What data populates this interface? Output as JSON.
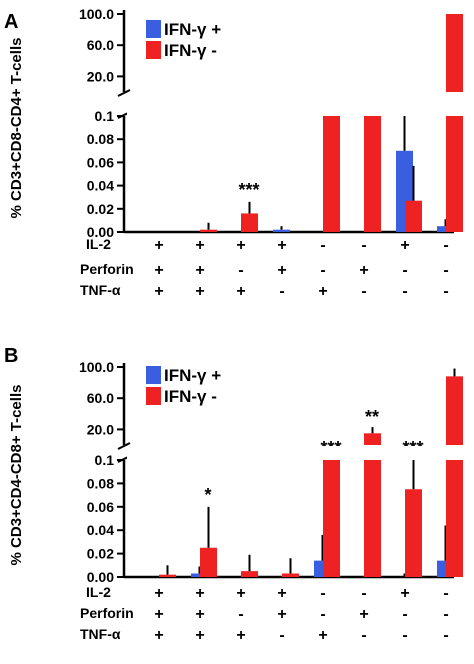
{
  "chart_data": [
    {
      "panel": "A",
      "type": "bar",
      "ylabel": "% CD3+CD8-CD4+ T-cells",
      "y_upper_ticks": [
        "20.0",
        "60.0",
        "100.0"
      ],
      "y_lower_ticks": [
        "0.00",
        "0.02",
        "0.04",
        "0.06",
        "0.08",
        "0.1"
      ],
      "ylim_upper": [
        0,
        100
      ],
      "ylim_lower": [
        0,
        0.1
      ],
      "axis_break": true,
      "series": [
        {
          "name": "IFN-γ +",
          "color": "#3a5ee0",
          "values": [
            0.0,
            0.0,
            0.0,
            0.002,
            0.0,
            0.0,
            0.07,
            0.005
          ],
          "errors": [
            0.0,
            0.0,
            0.0,
            0.003,
            0.0,
            0.0,
            0.03,
            0.006
          ]
        },
        {
          "name": "IFN-γ -",
          "color": "#ee2222",
          "values": [
            0.0,
            0.002,
            0.016,
            0.0,
            0.1,
            0.1,
            0.027,
            100.0
          ],
          "errors": [
            0.0,
            0.006,
            0.01,
            0.0,
            0.0,
            0.0,
            0.03,
            0.0
          ]
        }
      ],
      "significance": [
        "",
        "",
        "***",
        "",
        "***",
        "***",
        "",
        ""
      ],
      "conditions": {
        "IL-2": [
          "+",
          "+",
          "+",
          "+",
          "-",
          "-",
          "+",
          "-"
        ],
        "Perforin": [
          "+",
          "+",
          "-",
          "+",
          "-",
          "+",
          "-",
          "-"
        ],
        "TNF-α": [
          "+",
          "+",
          "+",
          "-",
          "+",
          "-",
          "-",
          "-"
        ]
      }
    },
    {
      "panel": "B",
      "type": "bar",
      "ylabel": "% CD3+CD4-CD8+ T-cells",
      "y_upper_ticks": [
        "20.0",
        "60.0",
        "100.0"
      ],
      "y_lower_ticks": [
        "0.00",
        "0.02",
        "0.04",
        "0.06",
        "0.08",
        "0.1"
      ],
      "ylim_upper": [
        0,
        100
      ],
      "ylim_lower": [
        0,
        0.1
      ],
      "axis_break": true,
      "series": [
        {
          "name": "IFN-γ +",
          "color": "#3a5ee0",
          "values": [
            0.0,
            0.003,
            0.0,
            0.0,
            0.014,
            0.0,
            0.0,
            0.014
          ],
          "errors": [
            0.0,
            0.006,
            0.0,
            0.0,
            0.022,
            0.0,
            0.003,
            0.03
          ]
        },
        {
          "name": "IFN-γ -",
          "color": "#ee2222",
          "values": [
            0.002,
            0.025,
            0.005,
            0.003,
            0.1,
            15.0,
            0.075,
            88.0
          ],
          "errors": [
            0.008,
            0.035,
            0.014,
            0.013,
            0.0,
            8.0,
            0.03,
            10.0
          ]
        }
      ],
      "significance": [
        "",
        "*",
        "",
        "",
        "***",
        "**",
        "***",
        ""
      ],
      "conditions": {
        "IL-2": [
          "+",
          "+",
          "+",
          "+",
          "-",
          "-",
          "+",
          "-"
        ],
        "Perforin": [
          "+",
          "+",
          "-",
          "+",
          "-",
          "+",
          "-",
          "-"
        ],
        "TNF-α": [
          "+",
          "+",
          "+",
          "-",
          "+",
          "-",
          "-",
          "-"
        ]
      }
    }
  ]
}
